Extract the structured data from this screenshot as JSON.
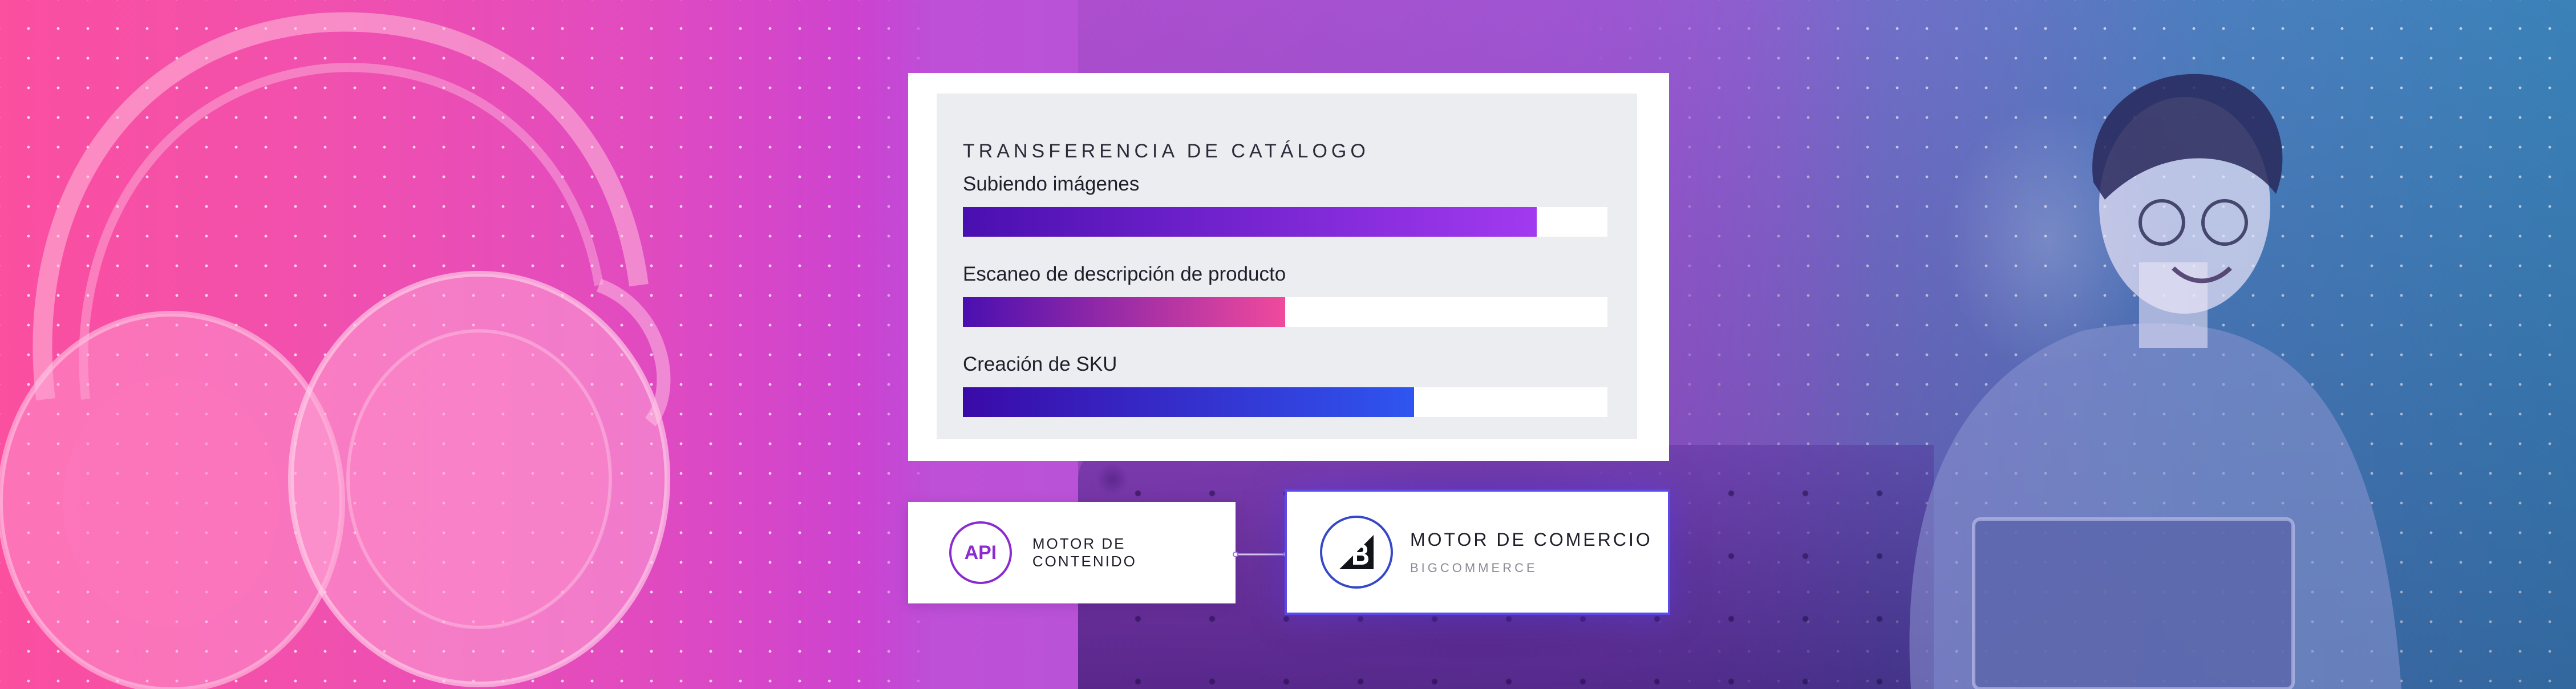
{
  "catalog": {
    "title": "TRANSFERENCIA DE CATÁLOGO",
    "tasks": [
      {
        "label": "Subiendo imágenes",
        "progress": 0.89,
        "gradient": [
          "#4a0fb0",
          "#a23af0"
        ]
      },
      {
        "label": "Escaneo de descripción de producto",
        "progress": 0.5,
        "gradient": [
          "#4a0fb0",
          "#f04a9c"
        ]
      },
      {
        "label": "Creación de SKU",
        "progress": 0.7,
        "gradient": [
          "#3a0aa8",
          "#2f55f0"
        ]
      }
    ]
  },
  "content_engine": {
    "badge": "API",
    "label": "MOTOR DE CONTENIDO"
  },
  "commerce_engine": {
    "title": "MOTOR DE COMERCIO",
    "subtitle": "BIGCOMMERCE"
  },
  "colors": {
    "accent_purple": "#8b2ad0",
    "accent_blue": "#5a4be8",
    "bar_track": "#ffffff",
    "card_inner": "#ecedf1"
  }
}
